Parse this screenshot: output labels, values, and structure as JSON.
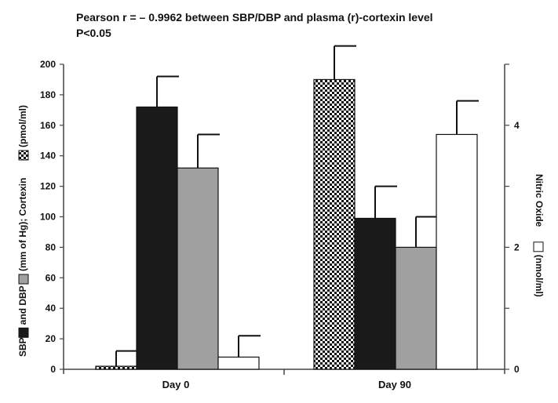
{
  "chart_data": {
    "type": "bar",
    "title": "Pearson r = – 0.9962 between SBP/DBP and plasma (r)-cortexin level",
    "subtitle": "P<0.05",
    "categories": [
      "Day 0",
      "Day 90"
    ],
    "left_axis": {
      "label_parts": [
        "SBP",
        "and DBP",
        "(mm of Hg); Cortexin",
        "(pmol/ml)"
      ],
      "ylim": [
        0,
        200
      ],
      "ticks": [
        "0",
        "20",
        "40",
        "60",
        "80",
        "100",
        "120",
        "140",
        "160",
        "180",
        "200"
      ]
    },
    "right_axis": {
      "label_parts": [
        "Nitric Oxide",
        "(nmol/ml)"
      ],
      "ylim": [
        0,
        5
      ],
      "ticks": [
        "0",
        "2",
        "4"
      ]
    },
    "series": [
      {
        "key": "cortexin",
        "axis": "left",
        "pattern": "checker",
        "fill": "#ffffff",
        "values": [
          2,
          190
        ],
        "errors": [
          10,
          22
        ]
      },
      {
        "key": "sbp",
        "axis": "left",
        "pattern": "solid",
        "fill": "#1a1a1a",
        "values": [
          172,
          99
        ],
        "errors": [
          20,
          21
        ]
      },
      {
        "key": "dbp",
        "axis": "left",
        "pattern": "solid",
        "fill": "#a0a0a0",
        "values": [
          132,
          80
        ],
        "errors": [
          22,
          20
        ]
      },
      {
        "key": "no",
        "axis": "right",
        "pattern": "solid",
        "fill": "#ffffff",
        "values": [
          0.2,
          3.85
        ],
        "errors": [
          0.35,
          0.55
        ]
      }
    ],
    "grid": false,
    "colors": {
      "axis": "#444444",
      "text": "#111111",
      "bar_stroke": "#111111"
    }
  }
}
